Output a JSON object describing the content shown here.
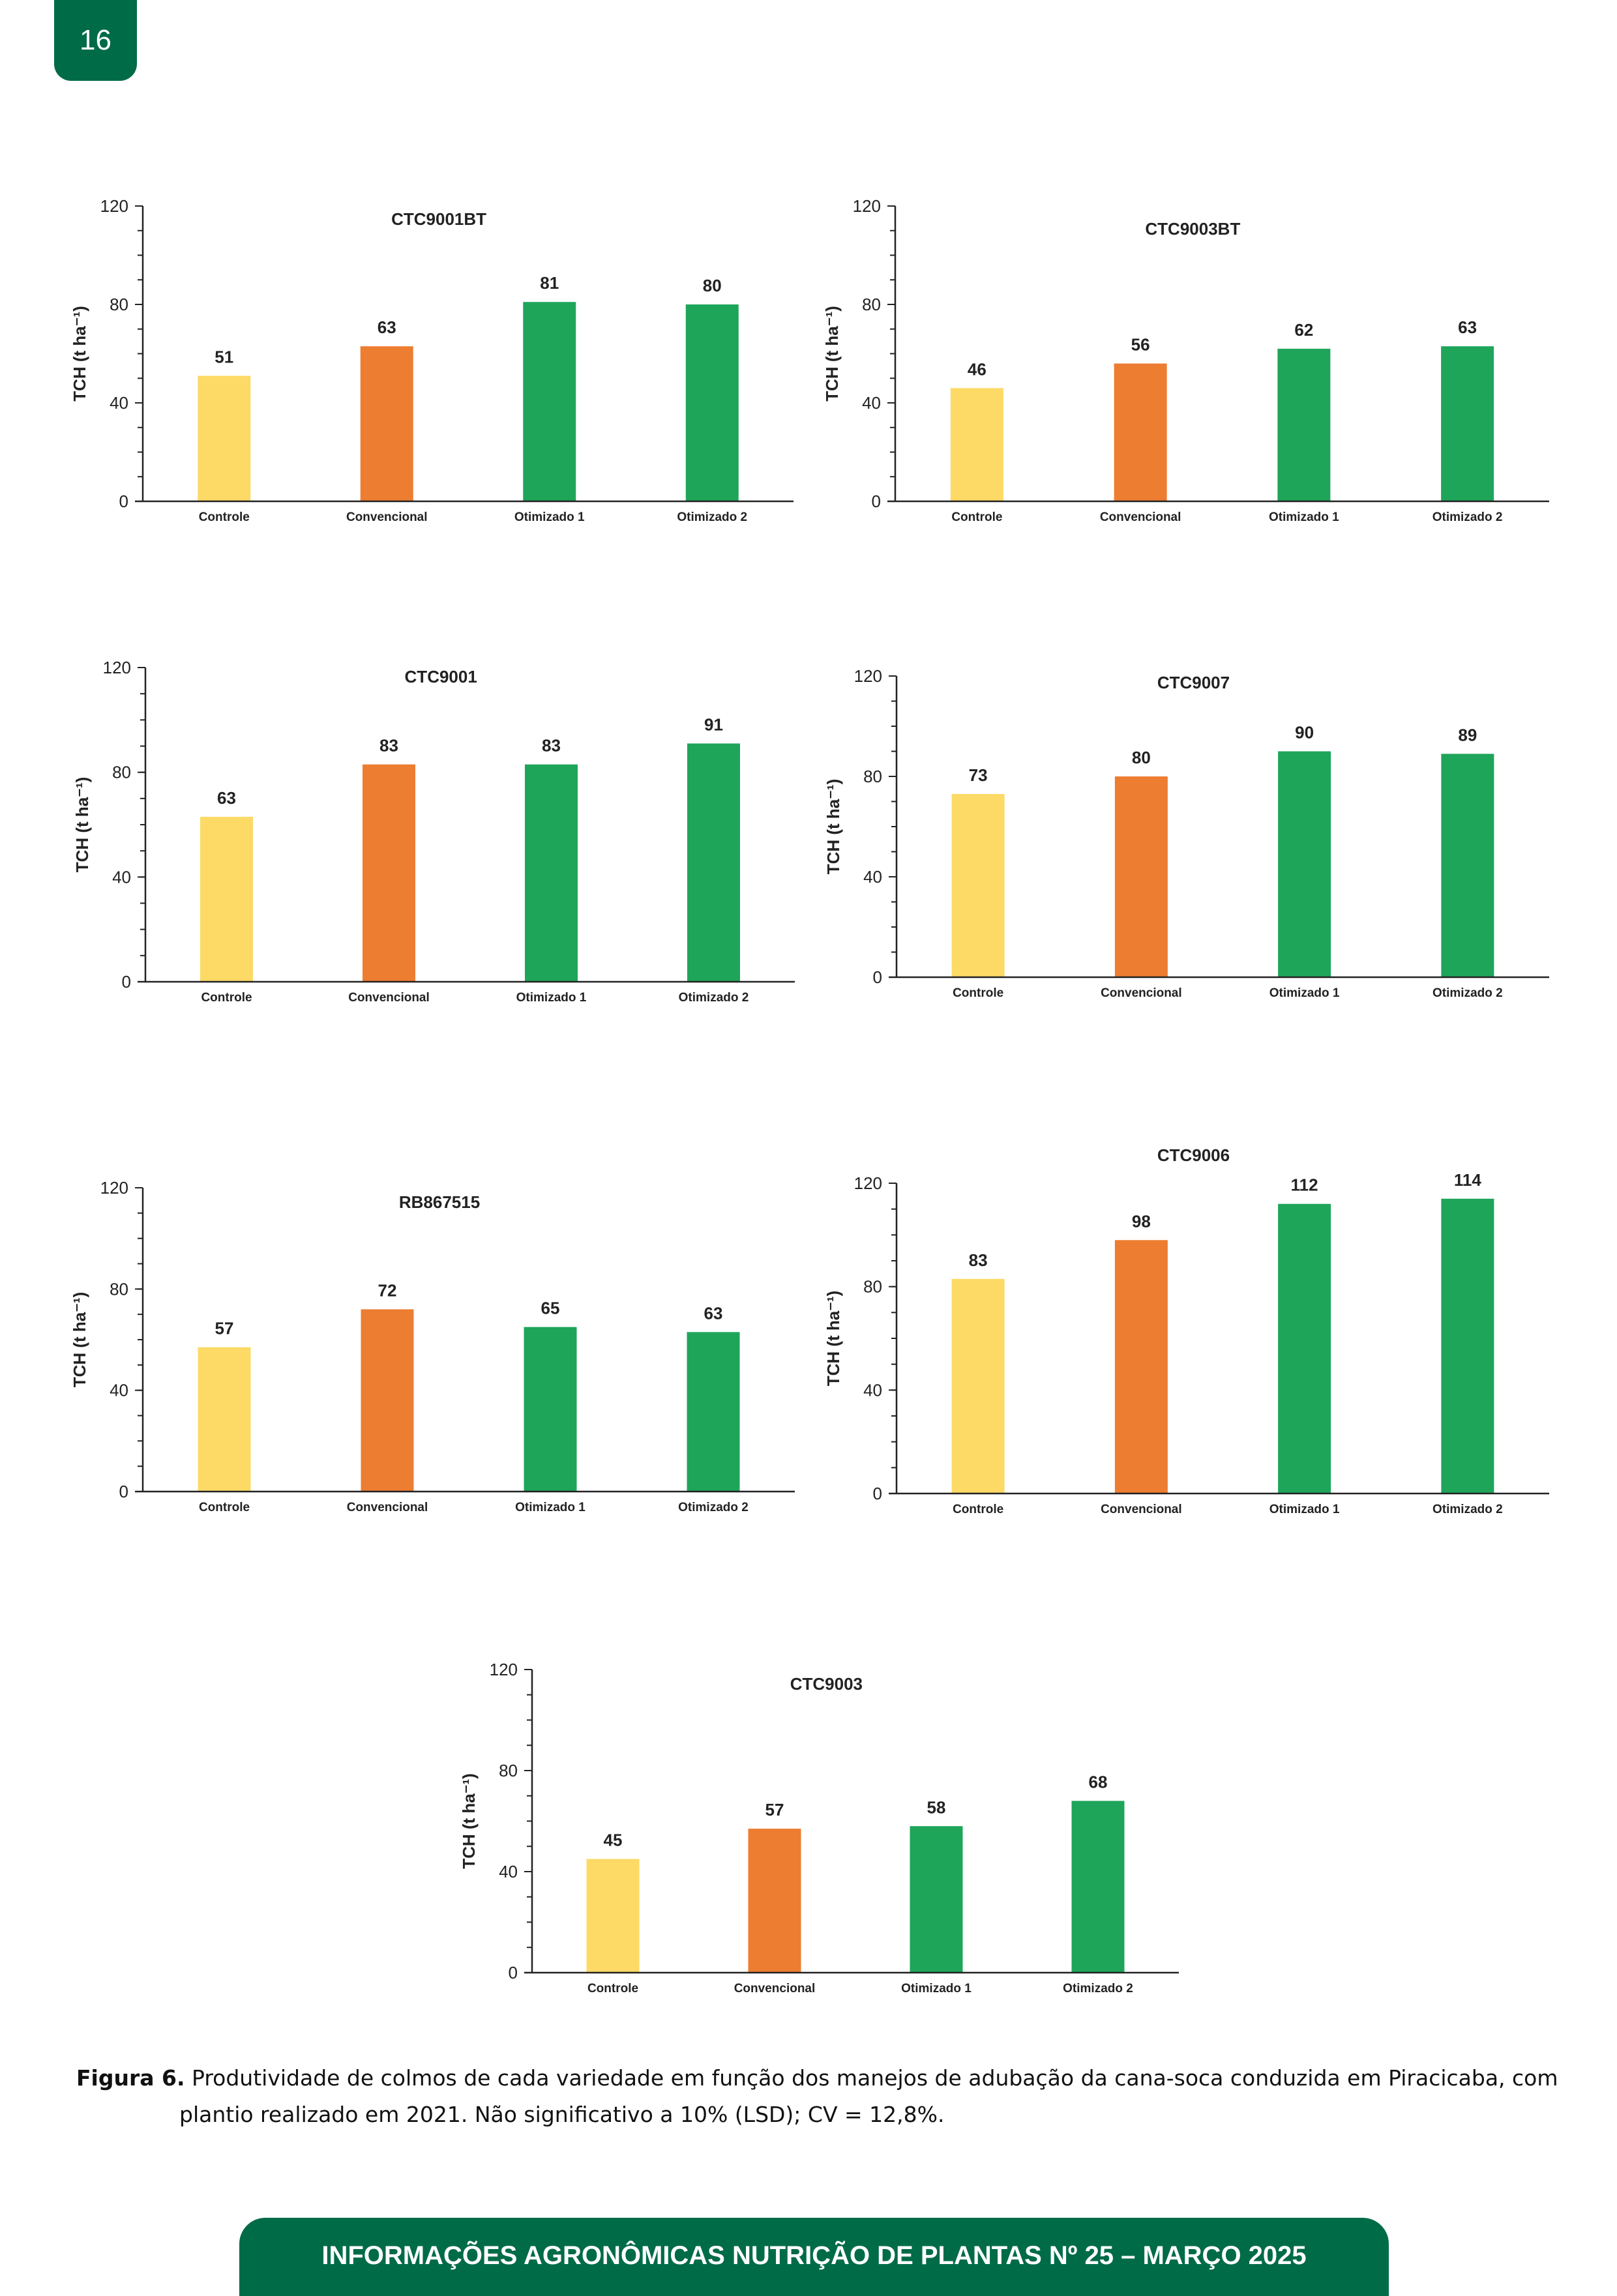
{
  "page_number": "16",
  "caption": {
    "label": "Figura 6.",
    "line1": "Produtividade de colmos de cada variedade em função dos manejos de adubação da cana-soca conduzida em Piracicaba, com",
    "line2": "plantio realizado em 2021. Não significativo a 10% (LSD); CV = 12,8%."
  },
  "footer": "INFORMAÇÕES AGRONÔMICAS NUTRIÇÃO DE PLANTAS Nº 25 – MARÇO 2025",
  "colors": {
    "brand": "#006b47",
    "Controle": "#fdd966",
    "Convencional": "#ed7d31",
    "Otimizado": "#1ea55a"
  },
  "chart_data": [
    {
      "type": "bar",
      "title": "CTC9001BT",
      "ylabel": "TCH (t ha⁻¹)",
      "xlabel": "",
      "ylim": [
        0,
        120
      ],
      "yticks": [
        0,
        40,
        80,
        120
      ],
      "categories": [
        "Controle",
        "Convencional",
        "Otimizado 1",
        "Otimizado 2"
      ],
      "values": [
        51,
        63,
        81,
        80
      ],
      "data_labels": [
        "51",
        "63",
        "81",
        "80"
      ]
    },
    {
      "type": "bar",
      "title": "CTC9003BT",
      "ylabel": "TCH (t ha⁻¹)",
      "xlabel": "",
      "ylim": [
        0,
        120
      ],
      "yticks": [
        0,
        40,
        80,
        120
      ],
      "categories": [
        "Controle",
        "Convencional",
        "Otimizado 1",
        "Otimizado 2"
      ],
      "values": [
        46,
        56,
        62,
        63
      ],
      "data_labels": [
        "46",
        "56",
        "62",
        "63"
      ]
    },
    {
      "type": "bar",
      "title": "CTC9001",
      "ylabel": "TCH (t ha⁻¹)",
      "xlabel": "",
      "ylim": [
        0,
        120
      ],
      "yticks": [
        0,
        40,
        80,
        120
      ],
      "categories": [
        "Controle",
        "Convencional",
        "Otimizado 1",
        "Otimizado 2"
      ],
      "values": [
        63,
        83,
        83,
        91
      ],
      "data_labels": [
        "63",
        "83",
        "83",
        "91"
      ]
    },
    {
      "type": "bar",
      "title": "CTC9007",
      "ylabel": "TCH (t ha⁻¹)",
      "xlabel": "",
      "ylim": [
        0,
        120
      ],
      "yticks": [
        0,
        40,
        80,
        120
      ],
      "categories": [
        "Controle",
        "Convencional",
        "Otimizado 1",
        "Otimizado 2"
      ],
      "values": [
        73,
        80,
        90,
        89
      ],
      "data_labels": [
        "73",
        "80",
        "90",
        "89"
      ]
    },
    {
      "type": "bar",
      "title": "RB867515",
      "ylabel": "TCH (t ha⁻¹)",
      "xlabel": "",
      "ylim": [
        0,
        120
      ],
      "yticks": [
        0,
        40,
        80,
        120
      ],
      "categories": [
        "Controle",
        "Convencional",
        "Otimizado 1",
        "Otimizado 2"
      ],
      "values": [
        57,
        72,
        65,
        63
      ],
      "data_labels": [
        "57",
        "72",
        "65",
        "63"
      ]
    },
    {
      "type": "bar",
      "title": "CTC9006",
      "ylabel": "TCH (t ha⁻¹)",
      "xlabel": "",
      "ylim": [
        0,
        120
      ],
      "yticks": [
        0,
        40,
        80,
        120
      ],
      "categories": [
        "Controle",
        "Convencional",
        "Otimizado 1",
        "Otimizado 2"
      ],
      "values": [
        83,
        98,
        112,
        114
      ],
      "data_labels": [
        "83",
        "98",
        "112",
        "114"
      ]
    },
    {
      "type": "bar",
      "title": "CTC9003",
      "ylabel": "TCH (t ha⁻¹)",
      "xlabel": "",
      "ylim": [
        0,
        120
      ],
      "yticks": [
        0,
        40,
        80,
        120
      ],
      "categories": [
        "Controle",
        "Convencional",
        "Otimizado 1",
        "Otimizado 2"
      ],
      "values": [
        45,
        57,
        58,
        68
      ],
      "data_labels": [
        "45",
        "57",
        "58",
        "68"
      ]
    }
  ]
}
